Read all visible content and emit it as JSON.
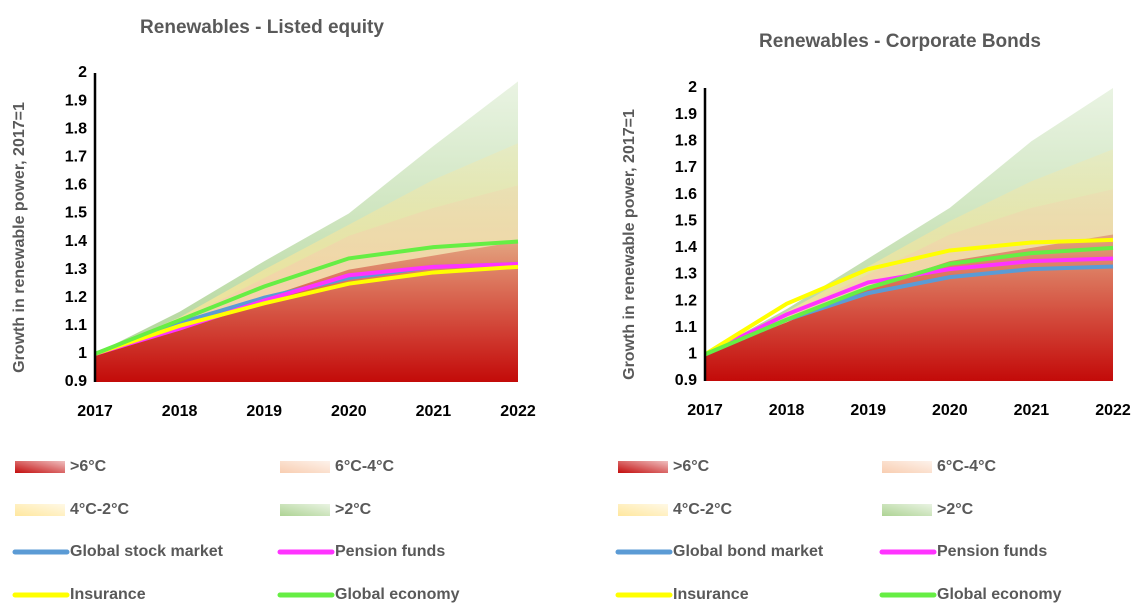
{
  "chart_data": [
    {
      "type": "line",
      "title": "Renewables - Listed equity",
      "y_label": "Growth in renewable power, 2017=1",
      "categories": [
        "2017",
        "2018",
        "2019",
        "2020",
        "2021",
        "2022"
      ],
      "ylim": [
        0.9,
        2
      ],
      "yticks": [
        0.9,
        1,
        1.1,
        1.2,
        1.3,
        1.4,
        1.5,
        1.6,
        1.7,
        1.8,
        1.9,
        2
      ],
      "series": [
        {
          "name": ">2°C",
          "type": "area",
          "color": "#a9d18e",
          "values": [
            1,
            1.15,
            1.33,
            1.5,
            1.74,
            1.97
          ]
        },
        {
          "name": "4°C-2°C",
          "type": "area",
          "color": "#ffe699",
          "values": [
            1,
            1.13,
            1.3,
            1.46,
            1.62,
            1.75
          ]
        },
        {
          "name": "6°C-4°C",
          "type": "area",
          "color": "#f8cbad",
          "values": [
            1,
            1.12,
            1.27,
            1.42,
            1.52,
            1.6
          ]
        },
        {
          "name": ">6°C",
          "type": "area",
          "color": "#c00000",
          "values": [
            1,
            1.1,
            1.2,
            1.3,
            1.35,
            1.4
          ]
        },
        {
          "name": "Global stock market",
          "type": "line",
          "color": "#5b9bd5",
          "values": [
            1,
            1.11,
            1.2,
            1.27,
            1.31,
            1.32
          ]
        },
        {
          "name": "Pension funds",
          "type": "line",
          "color": "#ff33ff",
          "values": [
            1,
            1.09,
            1.19,
            1.28,
            1.31,
            1.32
          ]
        },
        {
          "name": "Insurance",
          "type": "line",
          "color": "#ffff00",
          "values": [
            1,
            1.1,
            1.18,
            1.25,
            1.29,
            1.31
          ]
        },
        {
          "name": "Global economy",
          "type": "line",
          "color": "#66ee44",
          "values": [
            1,
            1.12,
            1.24,
            1.34,
            1.38,
            1.4
          ]
        }
      ]
    },
    {
      "type": "line",
      "title": "Renewables - Corporate Bonds",
      "y_label": "Growth in renewable power, 2017=1",
      "categories": [
        "2017",
        "2018",
        "2019",
        "2020",
        "2021",
        "2022"
      ],
      "ylim": [
        0.9,
        2
      ],
      "yticks": [
        0.9,
        1,
        1.1,
        1.2,
        1.3,
        1.4,
        1.5,
        1.6,
        1.7,
        1.8,
        1.9,
        2
      ],
      "series": [
        {
          "name": ">2°C",
          "type": "area",
          "color": "#a9d18e",
          "values": [
            1,
            1.17,
            1.36,
            1.55,
            1.8,
            2
          ]
        },
        {
          "name": "4°C-2°C",
          "type": "area",
          "color": "#ffe699",
          "values": [
            1,
            1.16,
            1.33,
            1.5,
            1.65,
            1.77
          ]
        },
        {
          "name": "6°C-4°C",
          "type": "area",
          "color": "#f8cbad",
          "values": [
            1,
            1.15,
            1.3,
            1.45,
            1.55,
            1.62
          ]
        },
        {
          "name": ">6°C",
          "type": "area",
          "color": "#c00000",
          "values": [
            1,
            1.12,
            1.25,
            1.35,
            1.4,
            1.45
          ]
        },
        {
          "name": "Global bond market",
          "type": "line",
          "color": "#5b9bd5",
          "values": [
            1,
            1.13,
            1.23,
            1.29,
            1.32,
            1.33
          ]
        },
        {
          "name": "Pension funds",
          "type": "line",
          "color": "#ff33ff",
          "values": [
            1,
            1.15,
            1.27,
            1.32,
            1.35,
            1.36
          ]
        },
        {
          "name": "Insurance",
          "type": "line",
          "color": "#ffff00",
          "values": [
            1,
            1.19,
            1.32,
            1.39,
            1.42,
            1.43
          ]
        },
        {
          "name": "Global economy",
          "type": "line",
          "color": "#66ee44",
          "values": [
            1,
            1.13,
            1.25,
            1.34,
            1.38,
            1.4
          ]
        }
      ]
    }
  ]
}
